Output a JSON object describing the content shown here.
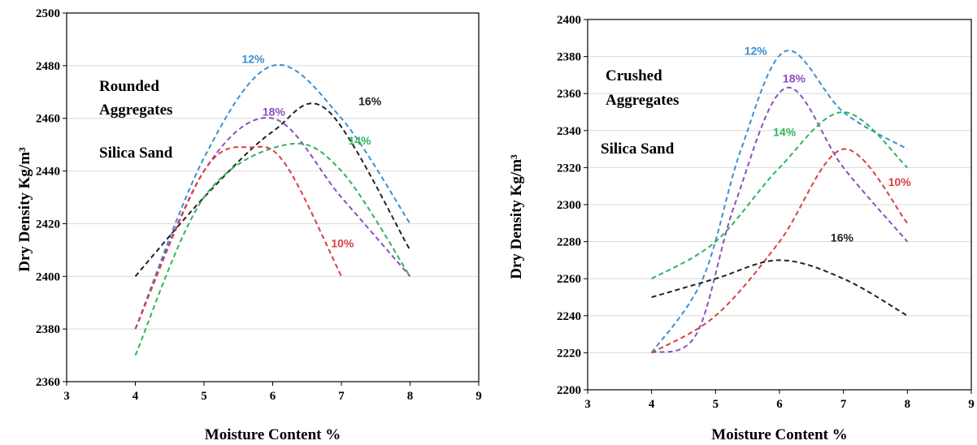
{
  "chart_data": [
    {
      "type": "line",
      "ylabel": "Dry Density    Kg/m³",
      "xlabel": "Moisture Content %",
      "xlim": [
        3,
        9
      ],
      "ylim": [
        2360,
        2500
      ],
      "x_ticks": [
        "3",
        "4",
        "5",
        "6",
        "7",
        "8",
        "9"
      ],
      "y_ticks": [
        "2360",
        "2380",
        "2400",
        "2420",
        "2440",
        "2460",
        "2480",
        "2500"
      ],
      "grid": "horizontal",
      "annotations": [
        "Rounded",
        "Aggregates",
        "Silica Sand"
      ],
      "series": [
        {
          "name": "12%",
          "color": "#3c8fd0",
          "x": [
            4,
            5,
            6,
            7,
            8
          ],
          "y": [
            2380,
            2445,
            2480,
            2460,
            2420
          ],
          "label_at": [
            5.55,
            2481
          ]
        },
        {
          "name": "18%",
          "color": "#8a4fbf",
          "x": [
            4,
            5,
            6,
            7,
            8
          ],
          "y": [
            2380,
            2440,
            2460,
            2430,
            2400
          ],
          "label_at": [
            5.85,
            2461
          ]
        },
        {
          "name": "16%",
          "color": "#222222",
          "x": [
            4,
            5,
            6,
            6.8,
            8
          ],
          "y": [
            2400,
            2430,
            2455,
            2463,
            2410
          ],
          "label_at": [
            7.25,
            2465
          ]
        },
        {
          "name": "14%",
          "color": "#2fb35a",
          "x": [
            4,
            5,
            6.2,
            7,
            8
          ],
          "y": [
            2370,
            2430,
            2450,
            2440,
            2400
          ],
          "label_at": [
            7.1,
            2450
          ]
        },
        {
          "name": "10%",
          "color": "#d94040",
          "x": [
            4,
            5,
            5.7,
            6.2,
            7
          ],
          "y": [
            2380,
            2440,
            2449,
            2442,
            2400
          ],
          "label_at": [
            6.85,
            2411
          ]
        }
      ]
    },
    {
      "type": "line",
      "ylabel": "Dry Density    Kg/m³",
      "xlabel": "Moisture Content %",
      "xlim": [
        3,
        9
      ],
      "ylim": [
        2200,
        2400
      ],
      "x_ticks": [
        "3",
        "4",
        "5",
        "6",
        "7",
        "8",
        "9"
      ],
      "y_ticks": [
        "2200",
        "2220",
        "2240",
        "2260",
        "2280",
        "2300",
        "2320",
        "2340",
        "2360",
        "2380",
        "2400"
      ],
      "grid": "horizontal",
      "annotations": [
        "Crushed",
        "Aggregates",
        "Silica Sand"
      ],
      "series": [
        {
          "name": "12%",
          "color": "#3c8fd0",
          "x": [
            4,
            4.8,
            5.4,
            6.1,
            7,
            8
          ],
          "y": [
            2220,
            2260,
            2330,
            2383,
            2350,
            2330
          ],
          "label_at": [
            5.45,
            2381
          ]
        },
        {
          "name": "18%",
          "color": "#8a4fbf",
          "x": [
            4,
            4.7,
            5.3,
            6.1,
            7,
            8
          ],
          "y": [
            2220,
            2230,
            2300,
            2363,
            2320,
            2280
          ],
          "label_at": [
            6.05,
            2366
          ]
        },
        {
          "name": "14%",
          "color": "#2fb35a",
          "x": [
            4,
            5,
            6,
            7,
            8
          ],
          "y": [
            2260,
            2280,
            2320,
            2350,
            2320
          ],
          "label_at": [
            5.9,
            2337
          ]
        },
        {
          "name": "10%",
          "color": "#d94040",
          "x": [
            4,
            5,
            6,
            7,
            8
          ],
          "y": [
            2220,
            2240,
            2280,
            2330,
            2290
          ],
          "label_at": [
            7.7,
            2310
          ]
        },
        {
          "name": "16%",
          "color": "#222222",
          "x": [
            4,
            5,
            6,
            7,
            8
          ],
          "y": [
            2250,
            2260,
            2270,
            2260,
            2240
          ],
          "label_at": [
            6.8,
            2280
          ]
        }
      ]
    }
  ]
}
